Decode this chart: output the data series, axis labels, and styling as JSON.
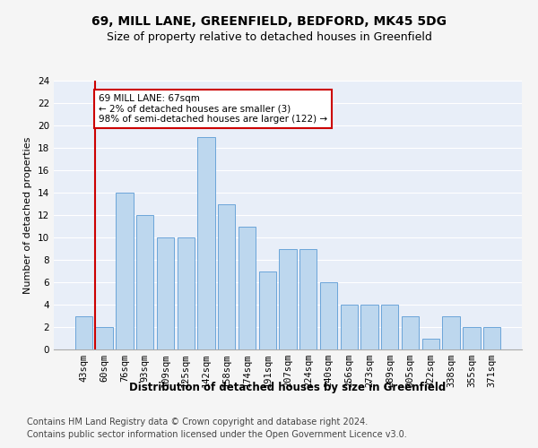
{
  "title1": "69, MILL LANE, GREENFIELD, BEDFORD, MK45 5DG",
  "title2": "Size of property relative to detached houses in Greenfield",
  "xlabel": "Distribution of detached houses by size in Greenfield",
  "ylabel": "Number of detached properties",
  "categories": [
    "43sqm",
    "60sqm",
    "76sqm",
    "93sqm",
    "109sqm",
    "125sqm",
    "142sqm",
    "158sqm",
    "174sqm",
    "191sqm",
    "207sqm",
    "224sqm",
    "240sqm",
    "256sqm",
    "273sqm",
    "289sqm",
    "305sqm",
    "322sqm",
    "338sqm",
    "355sqm",
    "371sqm"
  ],
  "values": [
    3,
    2,
    14,
    12,
    10,
    10,
    19,
    13,
    11,
    7,
    9,
    9,
    6,
    4,
    4,
    4,
    3,
    1,
    3,
    2,
    2
  ],
  "bar_color": "#bdd7ee",
  "bar_edge_color": "#5b9bd5",
  "red_line_index": 1,
  "annotation_text": "69 MILL LANE: 67sqm\n← 2% of detached houses are smaller (3)\n98% of semi-detached houses are larger (122) →",
  "annotation_box_color": "#ffffff",
  "annotation_box_edge": "#cc0000",
  "red_line_color": "#cc0000",
  "ylim": [
    0,
    24
  ],
  "yticks": [
    0,
    2,
    4,
    6,
    8,
    10,
    12,
    14,
    16,
    18,
    20,
    22,
    24
  ],
  "footer1": "Contains HM Land Registry data © Crown copyright and database right 2024.",
  "footer2": "Contains public sector information licensed under the Open Government Licence v3.0.",
  "plot_bg_color": "#e8eef8",
  "fig_bg_color": "#f5f5f5",
  "grid_color": "#ffffff",
  "title1_fontsize": 10,
  "title2_fontsize": 9,
  "xlabel_fontsize": 8.5,
  "ylabel_fontsize": 8,
  "tick_fontsize": 7.5,
  "footer_fontsize": 7
}
